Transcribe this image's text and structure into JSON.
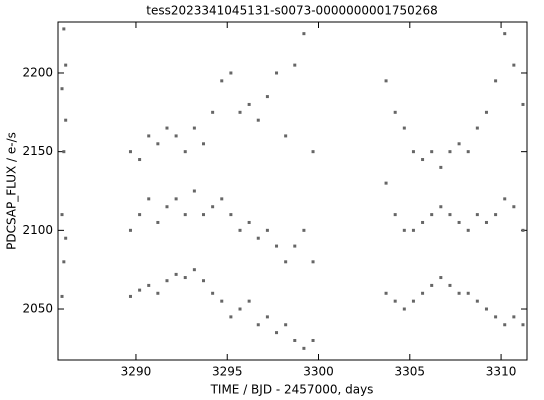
{
  "chart_data": {
    "type": "scatter",
    "title": "tess2023341045131-s0073-0000000001750268",
    "xlabel": "TIME / BJD - 2457000, days",
    "ylabel": "PDCSAP_FLUX / e-/s",
    "color": "#666666",
    "xlim": [
      3285.73,
      3311.42
    ],
    "ylim": [
      2017.6,
      2232.4
    ],
    "xticks": [
      3290,
      3295,
      3300,
      3305,
      3310
    ],
    "yticks": [
      2050,
      2100,
      2150,
      2200
    ],
    "x": [
      3285.95,
      3285.95,
      3285.95,
      3286.05,
      3286.05,
      3286.05,
      3286.15,
      3286.15,
      3286.15,
      3289.7,
      3289.7,
      3289.7,
      3290.2,
      3290.2,
      3290.2,
      3290.7,
      3290.7,
      3290.7,
      3291.2,
      3291.2,
      3291.2,
      3291.7,
      3291.7,
      3291.7,
      3292.2,
      3292.2,
      3292.2,
      3292.7,
      3292.7,
      3292.7,
      3293.2,
      3293.2,
      3293.2,
      3293.7,
      3293.7,
      3293.7,
      3294.2,
      3294.2,
      3294.2,
      3294.7,
      3294.7,
      3294.7,
      3295.2,
      3295.2,
      3295.2,
      3295.7,
      3295.7,
      3295.7,
      3296.2,
      3296.2,
      3296.2,
      3296.7,
      3296.7,
      3296.7,
      3297.2,
      3297.2,
      3297.2,
      3297.7,
      3297.7,
      3297.7,
      3298.2,
      3298.2,
      3298.2,
      3298.7,
      3298.7,
      3298.7,
      3299.2,
      3299.2,
      3299.2,
      3299.7,
      3299.7,
      3299.7,
      3303.7,
      3303.7,
      3303.7,
      3304.2,
      3304.2,
      3304.2,
      3304.7,
      3304.7,
      3304.7,
      3305.2,
      3305.2,
      3305.2,
      3305.7,
      3305.7,
      3305.7,
      3306.2,
      3306.2,
      3306.2,
      3306.7,
      3306.7,
      3306.7,
      3307.2,
      3307.2,
      3307.2,
      3307.7,
      3307.7,
      3307.7,
      3308.2,
      3308.2,
      3308.2,
      3308.7,
      3308.7,
      3308.7,
      3309.2,
      3309.2,
      3309.2,
      3309.7,
      3309.7,
      3309.7,
      3310.2,
      3310.2,
      3310.2,
      3310.7,
      3310.7,
      3310.7,
      3311.2,
      3311.2,
      3311.2
    ],
    "values": [
      2058,
      2110,
      2190,
      2080,
      2150,
      2228,
      2095,
      2170,
      2205,
      2058,
      2100,
      2150,
      2062,
      2110,
      2145,
      2065,
      2120,
      2160,
      2060,
      2105,
      2155,
      2068,
      2115,
      2165,
      2072,
      2120,
      2160,
      2070,
      2110,
      2150,
      2075,
      2125,
      2165,
      2068,
      2110,
      2155,
      2060,
      2115,
      2175,
      2055,
      2120,
      2195,
      2045,
      2110,
      2200,
      2050,
      2100,
      2175,
      2055,
      2105,
      2180,
      2040,
      2095,
      2170,
      2045,
      2100,
      2185,
      2035,
      2090,
      2200,
      2040,
      2080,
      2160,
      2030,
      2090,
      2205,
      2025,
      2100,
      2225,
      2030,
      2080,
      2150,
      2060,
      2130,
      2195,
      2055,
      2110,
      2175,
      2050,
      2100,
      2165,
      2055,
      2100,
      2150,
      2060,
      2105,
      2145,
      2065,
      2110,
      2150,
      2070,
      2115,
      2140,
      2065,
      2110,
      2150,
      2060,
      2105,
      2155,
      2060,
      2100,
      2150,
      2055,
      2110,
      2165,
      2050,
      2105,
      2175,
      2045,
      2110,
      2195,
      2040,
      2120,
      2225,
      2045,
      2115,
      2205,
      2040,
      2100,
      2180
    ]
  }
}
